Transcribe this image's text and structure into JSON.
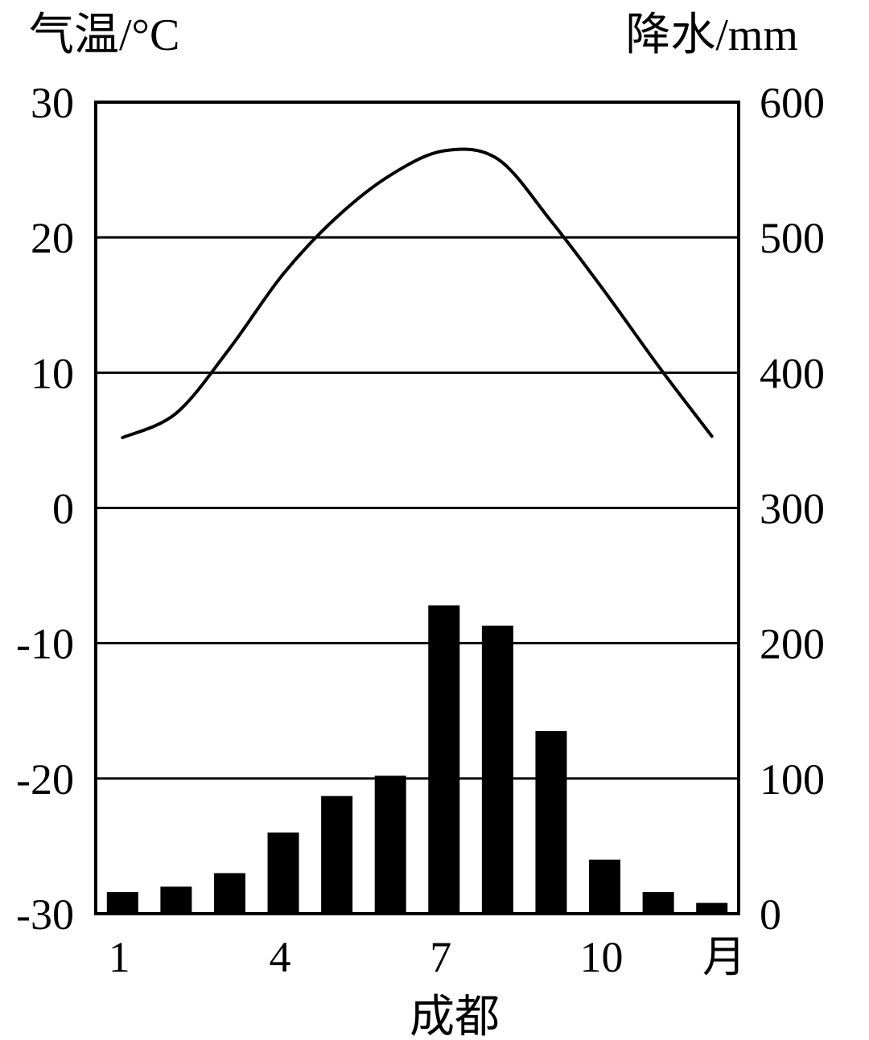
{
  "chart_data": {
    "type": "bar",
    "title": "成都",
    "x_ticks": [
      "1",
      "4",
      "7",
      "10"
    ],
    "x_tick_months": [
      1,
      4,
      7,
      10
    ],
    "x_unit": "月",
    "months": [
      1,
      2,
      3,
      4,
      5,
      6,
      7,
      8,
      9,
      10,
      11,
      12
    ],
    "left_axis": {
      "label": "气温/°C",
      "ylim": [
        -30,
        30
      ],
      "ticks": [
        30,
        20,
        10,
        0,
        -10,
        -20,
        -30
      ]
    },
    "right_axis": {
      "label": "降水/mm",
      "ylim": [
        0,
        600
      ],
      "ticks": [
        600,
        500,
        400,
        300,
        200,
        100,
        0
      ]
    },
    "grid_y": [
      -20,
      -10,
      0,
      10,
      20
    ],
    "series": [
      {
        "type": "bar",
        "axis": "right",
        "values": [
          16,
          20,
          30,
          60,
          87,
          102,
          228,
          213,
          135,
          40,
          16,
          8
        ]
      },
      {
        "type": "line",
        "axis": "left",
        "values": [
          5.2,
          7,
          11.8,
          17.3,
          21.5,
          24.6,
          26.4,
          25.8,
          21.2,
          16,
          10.5,
          5.3
        ]
      }
    ],
    "colors": {
      "bars": "#000000",
      "line": "#000000",
      "frame": "#000000",
      "grid": "#000000"
    }
  }
}
